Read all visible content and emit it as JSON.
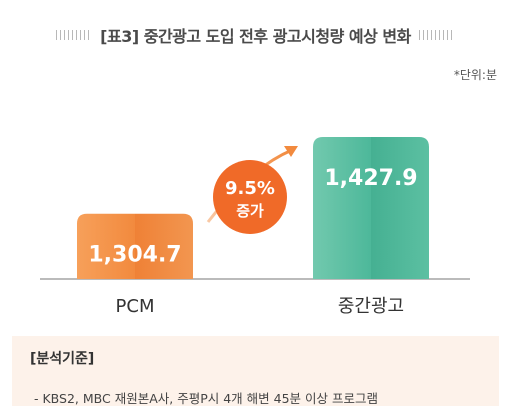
{
  "header": {
    "title": "[표3] 중간광고 도입 전후 광고시청량 예상 변화",
    "unit_note": "*단위:분"
  },
  "chart_data": {
    "type": "bar",
    "categories": [
      "PCM",
      "중간광고"
    ],
    "values": [
      1304.7,
      1427.9
    ],
    "value_labels": [
      "1,304.7",
      "1,427.9"
    ],
    "ylim": [
      0,
      1500
    ],
    "colors": [
      "#f28a3e",
      "#4db89a"
    ],
    "annotation": {
      "value": "9.5%",
      "label": "증가",
      "color": "#f06a28"
    }
  },
  "notes": {
    "title": "[분석기준]",
    "text": "- KBS2, MBC 재원본A사, 주평P시 4개 해변 45분 이상 프로그램"
  }
}
